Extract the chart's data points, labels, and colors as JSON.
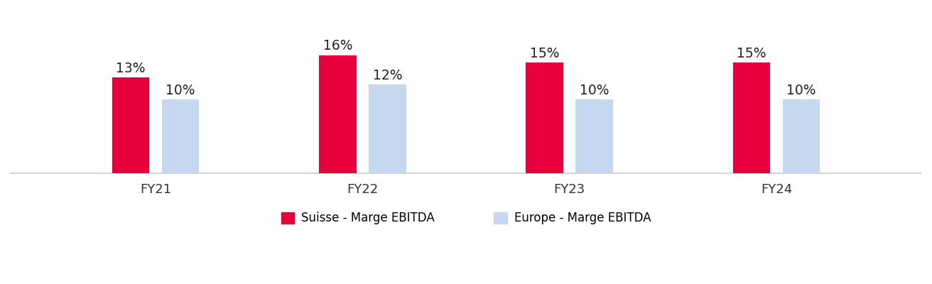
{
  "categories": [
    "FY21",
    "FY22",
    "FY23",
    "FY24"
  ],
  "suisse_values": [
    13,
    16,
    15,
    15
  ],
  "europe_values": [
    10,
    12,
    10,
    10
  ],
  "suisse_color": "#E8003D",
  "europe_color": "#C5D8EF",
  "background_color": "#FFFFFF",
  "bar_width": 0.18,
  "bar_gap": 0.06,
  "label_fontsize": 13.5,
  "tick_fontsize": 13,
  "legend_fontsize": 12,
  "ylim": [
    0,
    22
  ],
  "legend_suisse": "Suisse - Marge EBITDA",
  "legend_europe": "Europe - Marge EBITDA",
  "text_color": "#222222",
  "spine_color": "#CCCCCC"
}
